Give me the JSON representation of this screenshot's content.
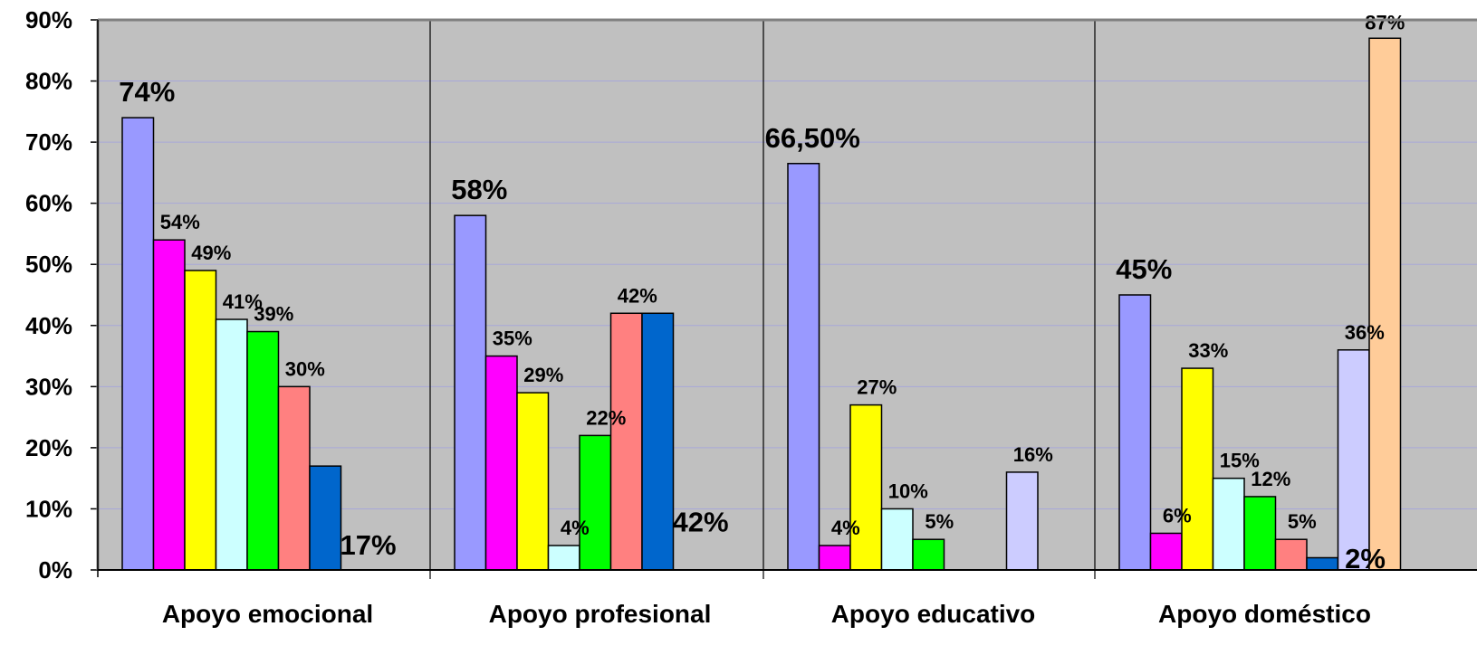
{
  "chart_data": {
    "type": "bar",
    "categories": [
      "Apoyo emocional",
      "Apoyo profesional",
      "Apoyo educativo",
      "Apoyo doméstico"
    ],
    "ylim": [
      0,
      90
    ],
    "y_ticks": [
      "0%",
      "10%",
      "20%",
      "30%",
      "40%",
      "50%",
      "60%",
      "70%",
      "80%",
      "90%"
    ],
    "grid": true,
    "legend": "none",
    "bar_colors": [
      "#9999ff",
      "#ff00ff",
      "#ffff00",
      "#ccffff",
      "#00ff00",
      "#ff8080",
      "#0066cc",
      "#ccccff",
      "#ffcc99"
    ],
    "plot_background": "#c0c0c0",
    "groups": [
      {
        "category": "Apoyo emocional",
        "bars": [
          {
            "value": 74,
            "label": "74%",
            "color": "#9999ff",
            "big": true
          },
          {
            "value": 54,
            "label": "54%",
            "color": "#ff00ff"
          },
          {
            "value": 49,
            "label": "49%",
            "color": "#ffff00"
          },
          {
            "value": 41,
            "label": "41%",
            "color": "#ccffff"
          },
          {
            "value": 39,
            "label": "39%",
            "color": "#00ff00"
          },
          {
            "value": 30,
            "label": "30%",
            "color": "#ff8080"
          },
          {
            "value": 17,
            "label": "17%",
            "color": "#0066cc",
            "big": true
          }
        ]
      },
      {
        "category": "Apoyo profesional",
        "bars": [
          {
            "value": 58,
            "label": "58%",
            "color": "#9999ff",
            "big": true
          },
          {
            "value": 35,
            "label": "35%",
            "color": "#ff00ff"
          },
          {
            "value": 29,
            "label": "29%",
            "color": "#ffff00"
          },
          {
            "value": 4,
            "label": "4%",
            "color": "#ccffff"
          },
          {
            "value": 22,
            "label": "22%",
            "color": "#00ff00"
          },
          {
            "value": 42,
            "label": "42%",
            "color": "#ff8080"
          },
          {
            "value": 42,
            "label": "42%",
            "color": "#0066cc",
            "big": true
          }
        ]
      },
      {
        "category": "Apoyo educativo",
        "bars": [
          {
            "value": 66.5,
            "label": "66,50%",
            "color": "#9999ff",
            "big": true
          },
          {
            "value": 4,
            "label": "4%",
            "color": "#ff00ff"
          },
          {
            "value": 27,
            "label": "27%",
            "color": "#ffff00"
          },
          {
            "value": 10,
            "label": "10%",
            "color": "#ccffff"
          },
          {
            "value": 5,
            "label": "5%",
            "color": "#00ff00"
          },
          {
            "value": 16,
            "label": "16%",
            "color": "#ccccff"
          }
        ]
      },
      {
        "category": "Apoyo doméstico",
        "bars": [
          {
            "value": 45,
            "label": "45%",
            "color": "#9999ff",
            "big": true
          },
          {
            "value": 6,
            "label": "6%",
            "color": "#ff00ff"
          },
          {
            "value": 33,
            "label": "33%",
            "color": "#ffff00"
          },
          {
            "value": 15,
            "label": "15%",
            "color": "#ccffff"
          },
          {
            "value": 12,
            "label": "12%",
            "color": "#00ff00"
          },
          {
            "value": 5,
            "label": "5%",
            "color": "#ff8080"
          },
          {
            "value": 2,
            "label": "2%",
            "color": "#0066cc",
            "big": true
          },
          {
            "value": 36,
            "label": "36%",
            "color": "#ccccff"
          },
          {
            "value": 87,
            "label": "87%",
            "color": "#ffcc99"
          }
        ]
      }
    ]
  }
}
